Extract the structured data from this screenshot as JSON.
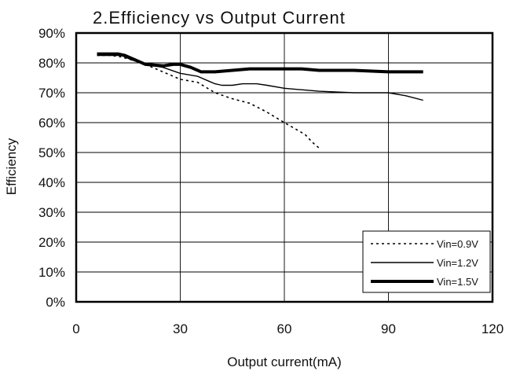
{
  "chart_data": {
    "type": "line",
    "title": "2.Efficiency vs Output Current",
    "xlabel": "Output current(mA)",
    "ylabel": "Efficiency",
    "xlim": [
      0,
      120
    ],
    "ylim": [
      0,
      90
    ],
    "x_ticks": [
      0,
      30,
      60,
      90,
      120
    ],
    "x_tick_labels": [
      "0",
      "30",
      "60",
      "90",
      "120"
    ],
    "y_ticks": [
      0,
      10,
      20,
      30,
      40,
      50,
      60,
      70,
      80,
      90
    ],
    "y_tick_labels": [
      "0%",
      "10%",
      "20%",
      "30%",
      "40%",
      "50%",
      "60%",
      "70%",
      "80%",
      "90%"
    ],
    "grid": true,
    "legend_position": "bottom-right",
    "series": [
      {
        "name": "Vin=0.9V",
        "style": "dotted",
        "color": "#000000",
        "x": [
          6,
          10,
          13,
          16,
          20,
          25,
          30,
          35,
          40,
          45,
          50,
          55,
          60,
          63,
          66,
          68,
          70
        ],
        "y": [
          82.5,
          82.5,
          82,
          81,
          79.5,
          77,
          74.5,
          73.5,
          70,
          68,
          66.5,
          63.5,
          60,
          58,
          56,
          53.5,
          51.5
        ]
      },
      {
        "name": "Vin=1.2V",
        "style": "solid-thin",
        "color": "#000000",
        "x": [
          6,
          10,
          13,
          16,
          20,
          25,
          30,
          35,
          38,
          40,
          42,
          45,
          48,
          52,
          55,
          60,
          65,
          70,
          80,
          85,
          90,
          95,
          100
        ],
        "y": [
          82.5,
          82.5,
          82.5,
          81,
          79.5,
          78.5,
          76.5,
          75.5,
          74,
          73,
          72.5,
          72.5,
          73,
          73,
          72.5,
          71.5,
          71,
          70.5,
          70,
          70,
          70,
          69,
          67.5
        ]
      },
      {
        "name": "Vin=1.5V",
        "style": "solid-thick",
        "color": "#000000",
        "x": [
          6,
          12,
          14,
          16,
          20,
          25,
          28,
          30,
          33,
          36,
          40,
          45,
          50,
          55,
          60,
          65,
          70,
          80,
          90,
          100
        ],
        "y": [
          83,
          83,
          82.5,
          81.5,
          79.5,
          79,
          79.5,
          79.5,
          78.5,
          77,
          77,
          77.5,
          78,
          78,
          78,
          78,
          77.5,
          77.5,
          77,
          77
        ]
      }
    ]
  }
}
